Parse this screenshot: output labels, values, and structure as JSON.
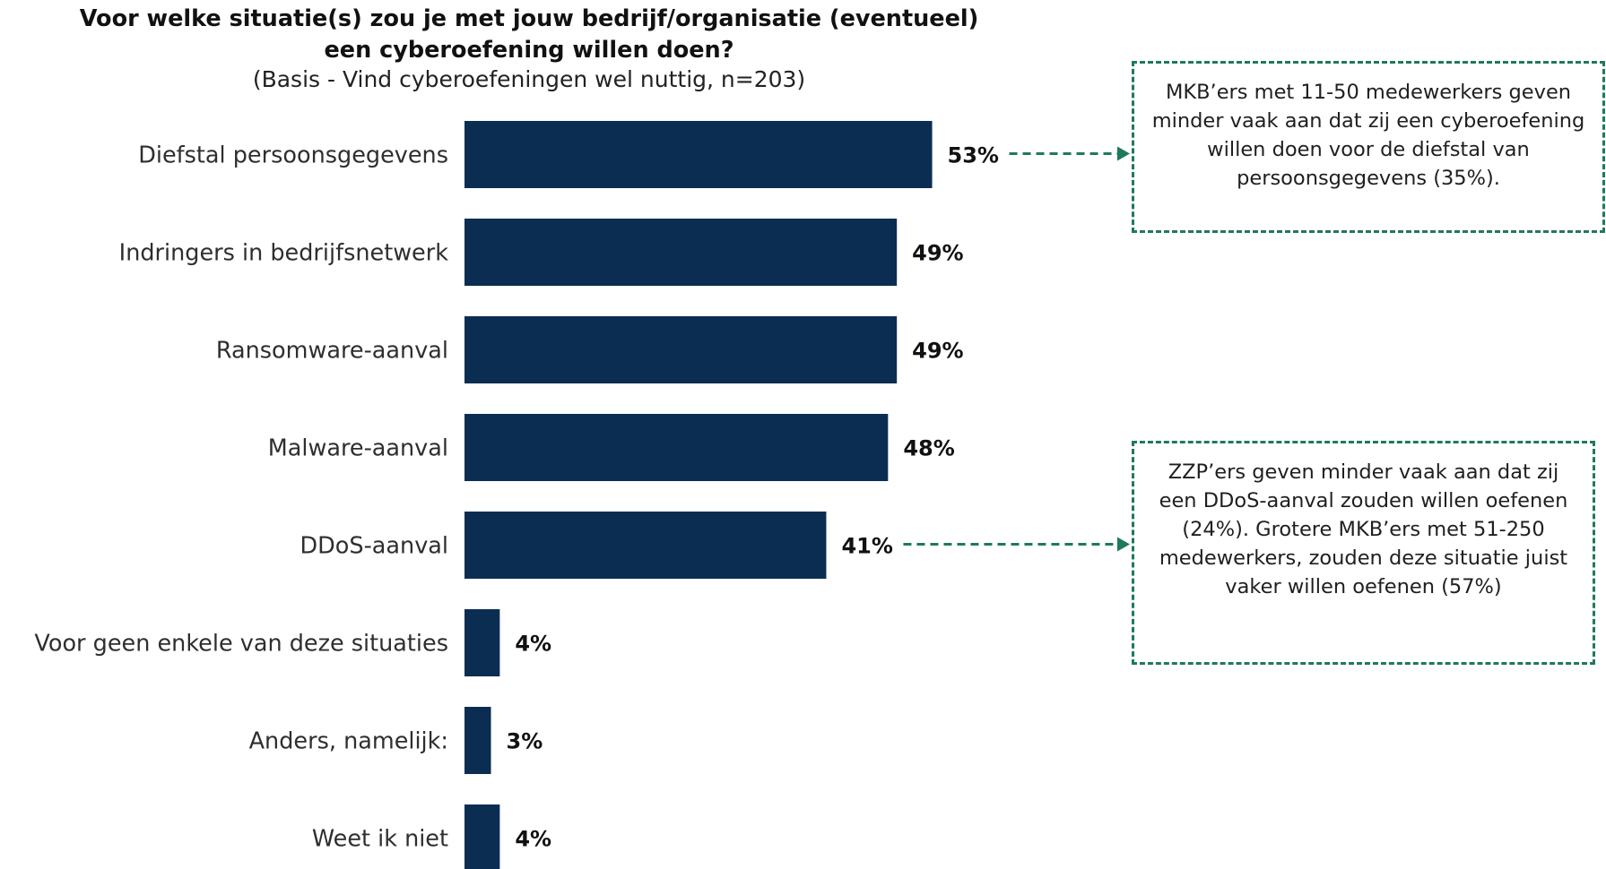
{
  "chart_data": {
    "type": "bar",
    "orientation": "horizontal",
    "title": "Voor welke situatie(s) zou je met jouw bedrijf/organisatie (eventueel) een cyberoefening willen doen?",
    "subtitle": "(Basis - Vind cyberoefeningen wel nuttig, n=203)",
    "categories": [
      "Diefstal persoonsgegevens",
      "Indringers in bedrijfsnetwerk",
      "Ransomware-aanval",
      "Malware-aanval",
      "DDoS-aanval",
      "Voor geen enkele van deze situaties",
      "Anders, namelijk:",
      "Weet ik niet"
    ],
    "values": [
      53,
      49,
      49,
      48,
      41,
      4,
      3,
      4
    ],
    "value_labels": [
      "53%",
      "49%",
      "49%",
      "48%",
      "41%",
      "4%",
      "3%",
      "4%"
    ],
    "unit": "%",
    "xlim": [
      0,
      60
    ],
    "grid": false,
    "colors": {
      "bar": "#0b2d52",
      "annotation": "#1e7a5a"
    }
  },
  "annotations": [
    {
      "text": "MKB’ers met 11-50 medewerkers geven minder vaak aan dat zij een cyberoefening willen doen voor de diefstal van persoonsgegevens (35%).",
      "category_index": 0
    },
    {
      "text": "ZZP’ers geven minder vaak aan dat zij een DDoS-aanval zouden willen oefenen (24%). Grotere MKB’ers met 51-250 medewerkers, zouden deze situatie juist vaker willen oefenen (57%)",
      "category_index": 4
    }
  ]
}
